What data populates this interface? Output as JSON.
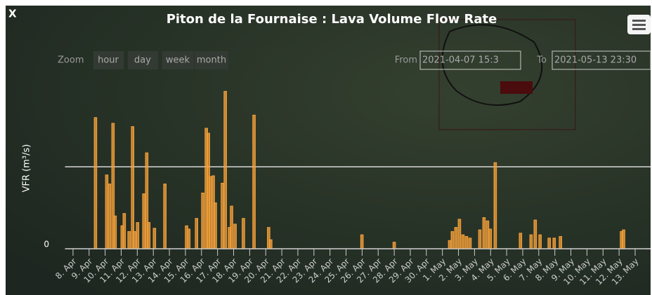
{
  "ui": {
    "close": "X",
    "zoom_label": "Zoom",
    "zoom_buttons": [
      "hour",
      "day",
      "week",
      "month"
    ],
    "from_label": "From",
    "from_value": "2021-04-07 15:3",
    "to_label": "To",
    "to_value": "2021-05-13 23:30"
  },
  "chart_data": {
    "type": "bar",
    "title": "Piton de la Fournaise : Lava Volume Flow Rate",
    "y_label": "VFR (m³/s)",
    "color": "#f7a23a",
    "x": [
      1.4,
      2.1,
      2.27,
      2.49,
      2.62,
      3.06,
      3.19,
      3.49,
      3.71,
      3.84,
      4.02,
      4.41,
      4.59,
      4.72,
      5.07,
      5.72,
      7.07,
      7.21,
      7.69,
      8.08,
      8.3,
      8.43,
      8.56,
      8.73,
      8.86,
      9.3,
      9.48,
      9.74,
      9.87,
      10.09,
      10.61,
      11.27,
      12.18,
      12.31,
      17.99,
      20.0,
      23.45,
      23.62,
      23.84,
      24.06,
      24.28,
      24.5,
      24.72,
      25.33,
      25.59,
      25.81,
      25.98,
      26.29,
      27.86,
      28.52,
      28.78,
      29.08,
      29.65,
      29.96,
      30.35,
      34.15,
      34.28
    ],
    "values": [
      16.0,
      9.0,
      7.9,
      15.3,
      4.0,
      2.8,
      4.3,
      2.1,
      14.9,
      2.1,
      3.2,
      6.7,
      11.7,
      3.2,
      2.5,
      7.9,
      2.8,
      2.4,
      3.7,
      6.8,
      14.7,
      14.1,
      8.8,
      8.9,
      5.6,
      8.0,
      19.2,
      2.6,
      5.2,
      3.0,
      3.7,
      16.3,
      2.6,
      1.1,
      1.7,
      0.8,
      1.0,
      2.1,
      2.6,
      3.6,
      1.7,
      1.5,
      1.3,
      2.3,
      3.8,
      3.4,
      2.4,
      10.5,
      1.9,
      1.7,
      3.5,
      1.7,
      1.3,
      1.3,
      1.5,
      2.1,
      2.3
    ],
    "xlim": [
      -0.5,
      35.7
    ],
    "xticks": [
      {
        "value": 0,
        "label": "8. Apr"
      },
      {
        "value": 1,
        "label": "9. Apr"
      },
      {
        "value": 2,
        "label": "10. Apr"
      },
      {
        "value": 3,
        "label": "11. Apr"
      },
      {
        "value": 4,
        "label": "12. Apr"
      },
      {
        "value": 5,
        "label": "13. Apr"
      },
      {
        "value": 6,
        "label": "14. Apr"
      },
      {
        "value": 7,
        "label": "15. Apr"
      },
      {
        "value": 8,
        "label": "16. Apr"
      },
      {
        "value": 9,
        "label": "17. Apr"
      },
      {
        "value": 10,
        "label": "18. Apr"
      },
      {
        "value": 11,
        "label": "19. Apr"
      },
      {
        "value": 12,
        "label": "20. Apr"
      },
      {
        "value": 13,
        "label": "21. Apr"
      },
      {
        "value": 14,
        "label": "22. Apr"
      },
      {
        "value": 15,
        "label": "23. Apr"
      },
      {
        "value": 16,
        "label": "24. Apr"
      },
      {
        "value": 17,
        "label": "25. Apr"
      },
      {
        "value": 18,
        "label": "26. Apr"
      },
      {
        "value": 19,
        "label": "27. Apr"
      },
      {
        "value": 20,
        "label": "28. Apr"
      },
      {
        "value": 21,
        "label": "29. Apr"
      },
      {
        "value": 22,
        "label": "30. Apr"
      },
      {
        "value": 23,
        "label": "1. May"
      },
      {
        "value": 24,
        "label": "2. May"
      },
      {
        "value": 25,
        "label": "3. May"
      },
      {
        "value": 26,
        "label": "4. May"
      },
      {
        "value": 27,
        "label": "5. May"
      },
      {
        "value": 28,
        "label": "6. May"
      },
      {
        "value": 29,
        "label": "7. May"
      },
      {
        "value": 30,
        "label": "8. May"
      },
      {
        "value": 31,
        "label": "9. May"
      },
      {
        "value": 32,
        "label": "10. May"
      },
      {
        "value": 33,
        "label": "11. May"
      },
      {
        "value": 34,
        "label": "12. May"
      },
      {
        "value": 35,
        "label": "13. May"
      }
    ],
    "ylim": [
      0,
      20
    ],
    "yticks": [
      0,
      {
        "value": 10,
        "label": null
      }
    ],
    "grid": true
  }
}
